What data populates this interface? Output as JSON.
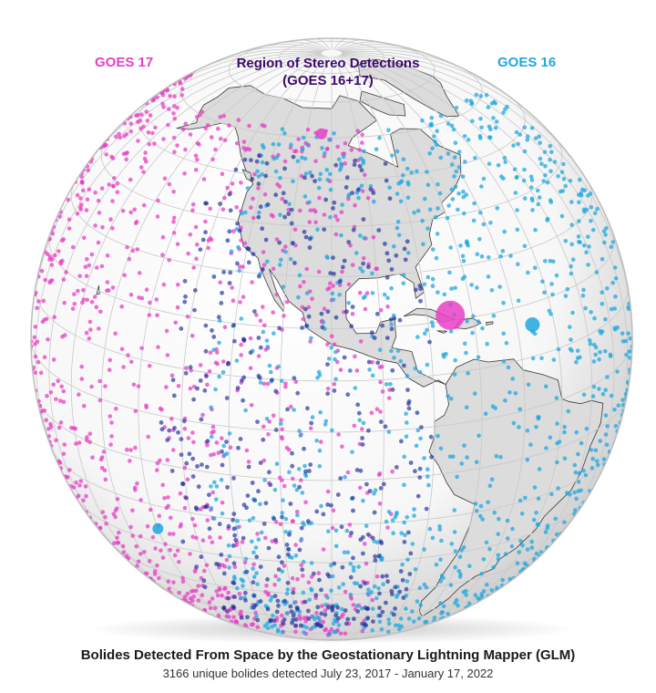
{
  "legend": {
    "goes17": "GOES 17",
    "goes16": "GOES 16",
    "stereo_line1": "Region of Stereo Detections",
    "stereo_line2": "(GOES 16+17)"
  },
  "caption": {
    "title": "Bolides Detected From Space by the Geostationary Lightning Mapper (GLM)",
    "subtitle": "3166 unique bolides detected July 23, 2017 - January 17, 2022"
  },
  "colors": {
    "goes17": "#e83fc6",
    "goes16": "#1fa8e0",
    "stereo": "#1a2a9a",
    "stereo_label": "#3b0a6b",
    "land": "#dcdcdc",
    "land_outline": "#3a3a3a",
    "graticule": "#c8c8c8",
    "globe": "#ffffff"
  },
  "map": {
    "projection": "orthographic",
    "graticule_step_deg": 10,
    "notable_bolides": [
      {
        "satellite": "goes17",
        "lon": -75,
        "lat": 21,
        "size": "large"
      },
      {
        "satellite": "goes16",
        "lon": -56,
        "lat": 16,
        "size": "medium"
      },
      {
        "satellite": "goes17",
        "lon": -104,
        "lat": 61,
        "size": "small"
      },
      {
        "satellite": "goes16",
        "lon": -140,
        "lat": -26,
        "size": "small"
      }
    ]
  }
}
